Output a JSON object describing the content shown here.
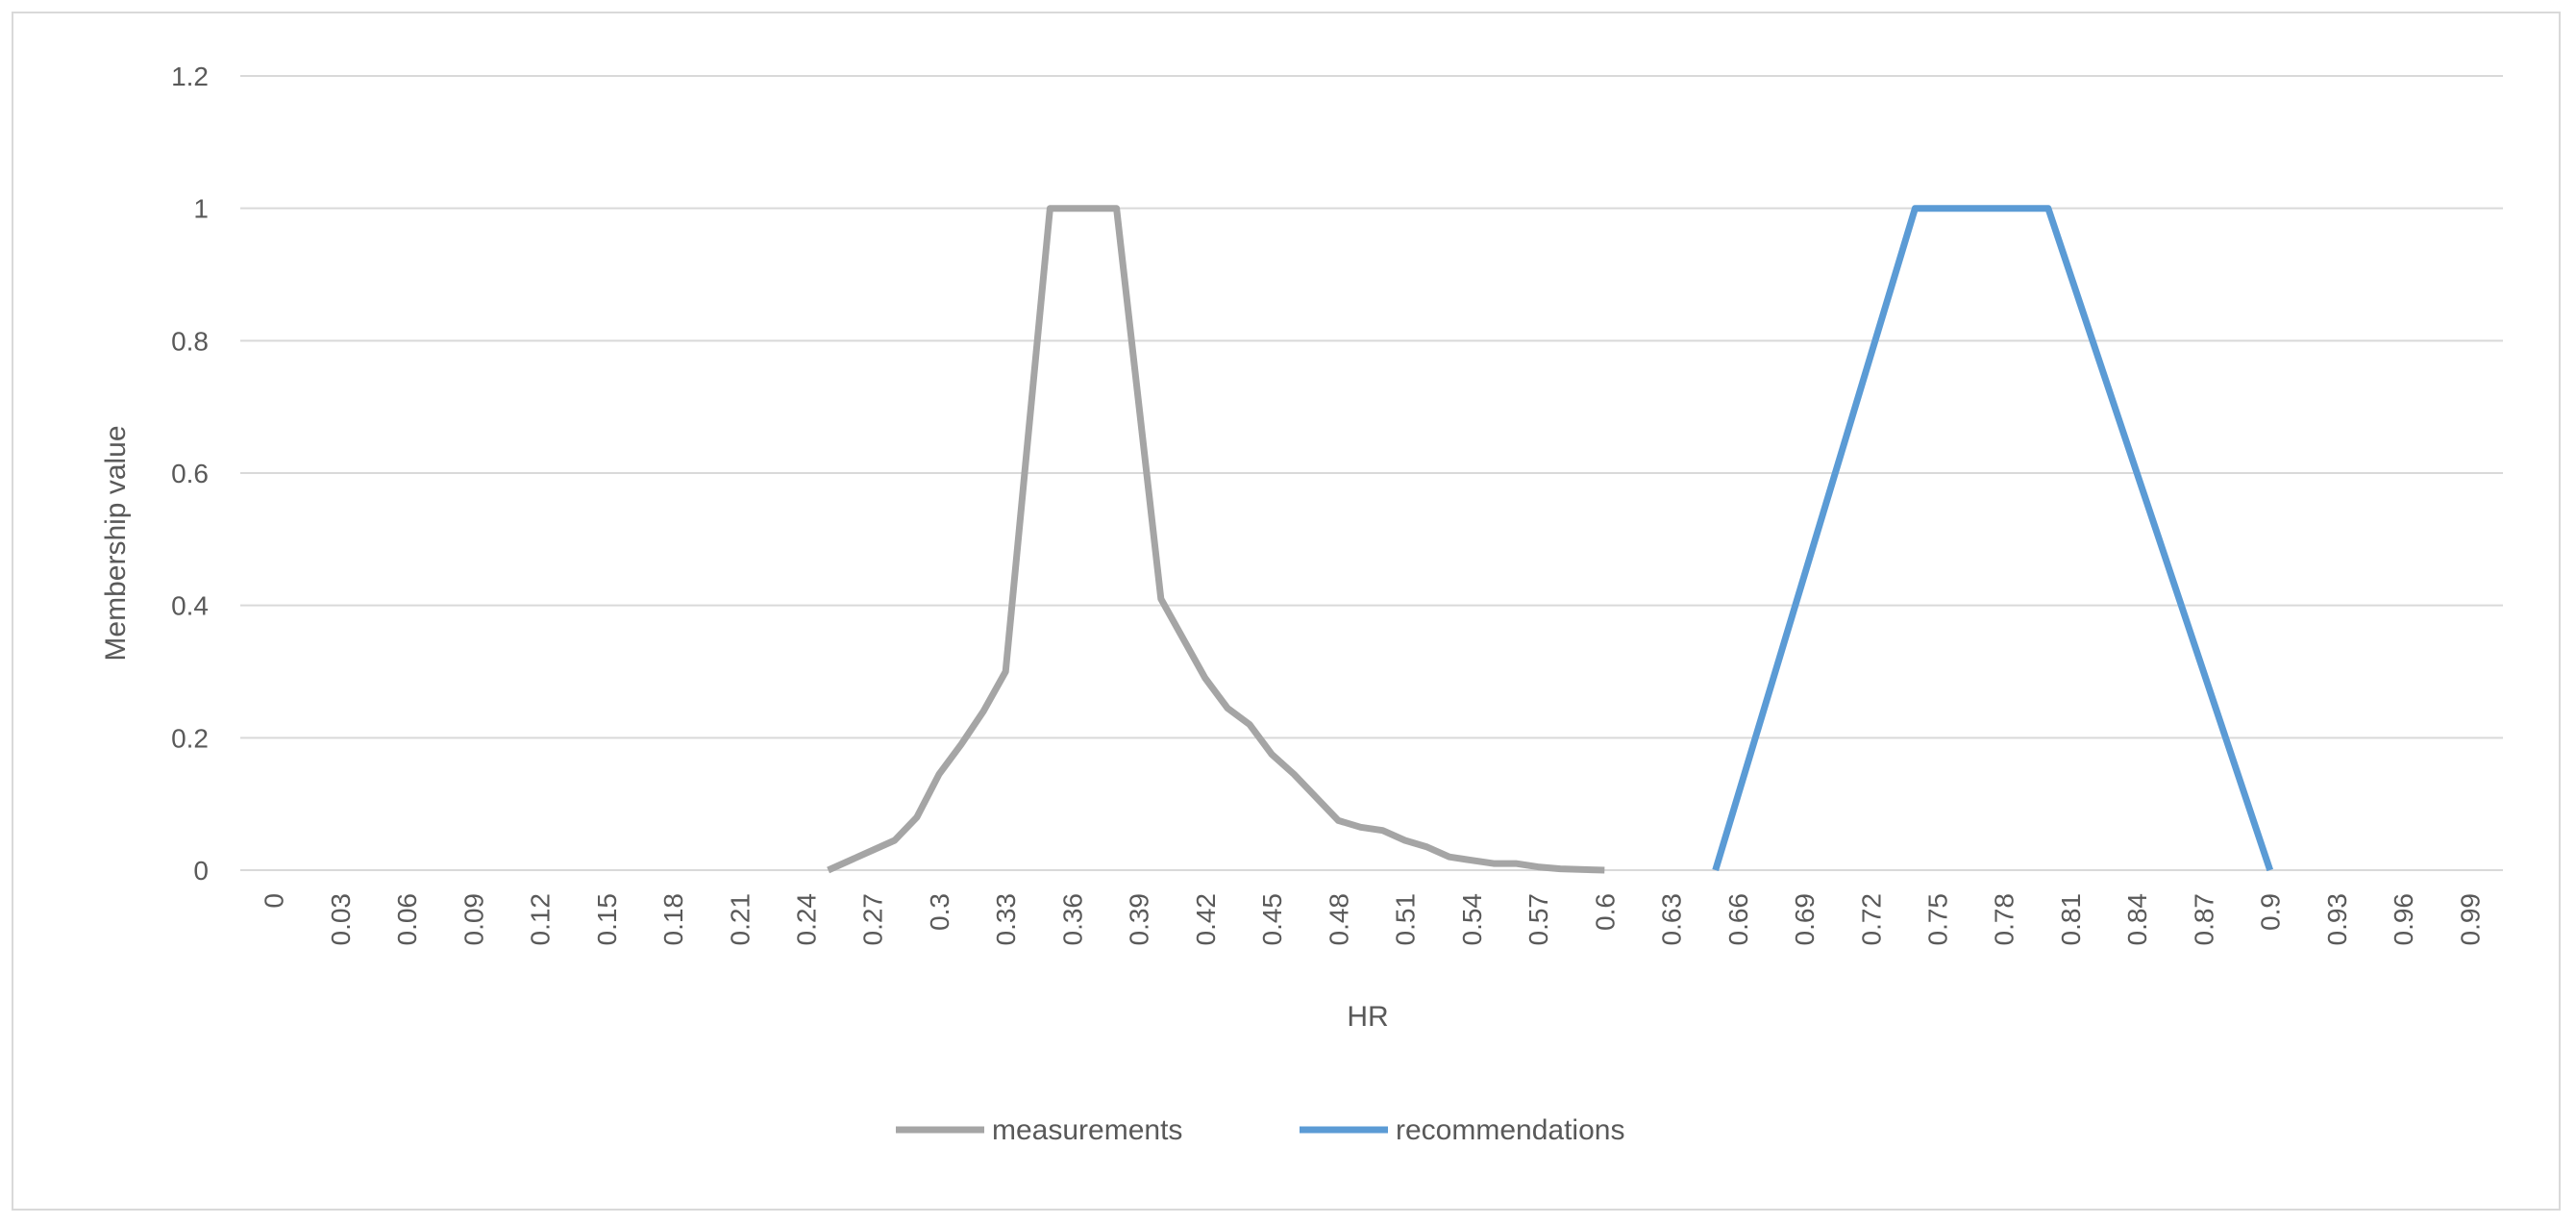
{
  "chart_data": {
    "type": "line",
    "title": "",
    "xlabel": "HR",
    "ylabel": "Membership value",
    "ylim": [
      0,
      1.2
    ],
    "y_ticks": [
      "0",
      "0.2",
      "0.4",
      "0.6",
      "0.8",
      "1",
      "1.2"
    ],
    "x_tick_labels": [
      "0",
      "0.03",
      "0.06",
      "0.09",
      "0.12",
      "0.15",
      "0.18",
      "0.21",
      "0.24",
      "0.27",
      "0.3",
      "0.33",
      "0.36",
      "0.39",
      "0.42",
      "0.45",
      "0.48",
      "0.51",
      "0.54",
      "0.57",
      "0.6",
      "0.63",
      "0.66",
      "0.69",
      "0.72",
      "0.75",
      "0.78",
      "0.81",
      "0.84",
      "0.87",
      "0.9",
      "0.93",
      "0.96",
      "0.99"
    ],
    "x_range": [
      0,
      1
    ],
    "grid": "horizontal",
    "legend_position": "bottom",
    "series": [
      {
        "name": "measurements",
        "color": "#a5a5a5",
        "points": [
          [
            0.25,
            0
          ],
          [
            0.28,
            0.045
          ],
          [
            0.29,
            0.08
          ],
          [
            0.3,
            0.145
          ],
          [
            0.31,
            0.19
          ],
          [
            0.32,
            0.24
          ],
          [
            0.33,
            0.3
          ],
          [
            0.35,
            1.0
          ],
          [
            0.38,
            1.0
          ],
          [
            0.4,
            0.41
          ],
          [
            0.41,
            0.35
          ],
          [
            0.42,
            0.29
          ],
          [
            0.43,
            0.245
          ],
          [
            0.44,
            0.22
          ],
          [
            0.45,
            0.175
          ],
          [
            0.46,
            0.145
          ],
          [
            0.48,
            0.075
          ],
          [
            0.49,
            0.065
          ],
          [
            0.5,
            0.06
          ],
          [
            0.51,
            0.045
          ],
          [
            0.52,
            0.035
          ],
          [
            0.53,
            0.02
          ],
          [
            0.54,
            0.015
          ],
          [
            0.55,
            0.01
          ],
          [
            0.56,
            0.01
          ],
          [
            0.57,
            0.005
          ],
          [
            0.58,
            0.002
          ],
          [
            0.6,
            0
          ]
        ]
      },
      {
        "name": "recommendations",
        "color": "#5b9bd5",
        "points": [
          [
            0.65,
            0
          ],
          [
            0.74,
            1.0
          ],
          [
            0.8,
            1.0
          ],
          [
            0.83,
            0.7
          ],
          [
            0.85,
            0.5
          ],
          [
            0.88,
            0.2
          ],
          [
            0.9,
            0
          ]
        ]
      }
    ]
  }
}
